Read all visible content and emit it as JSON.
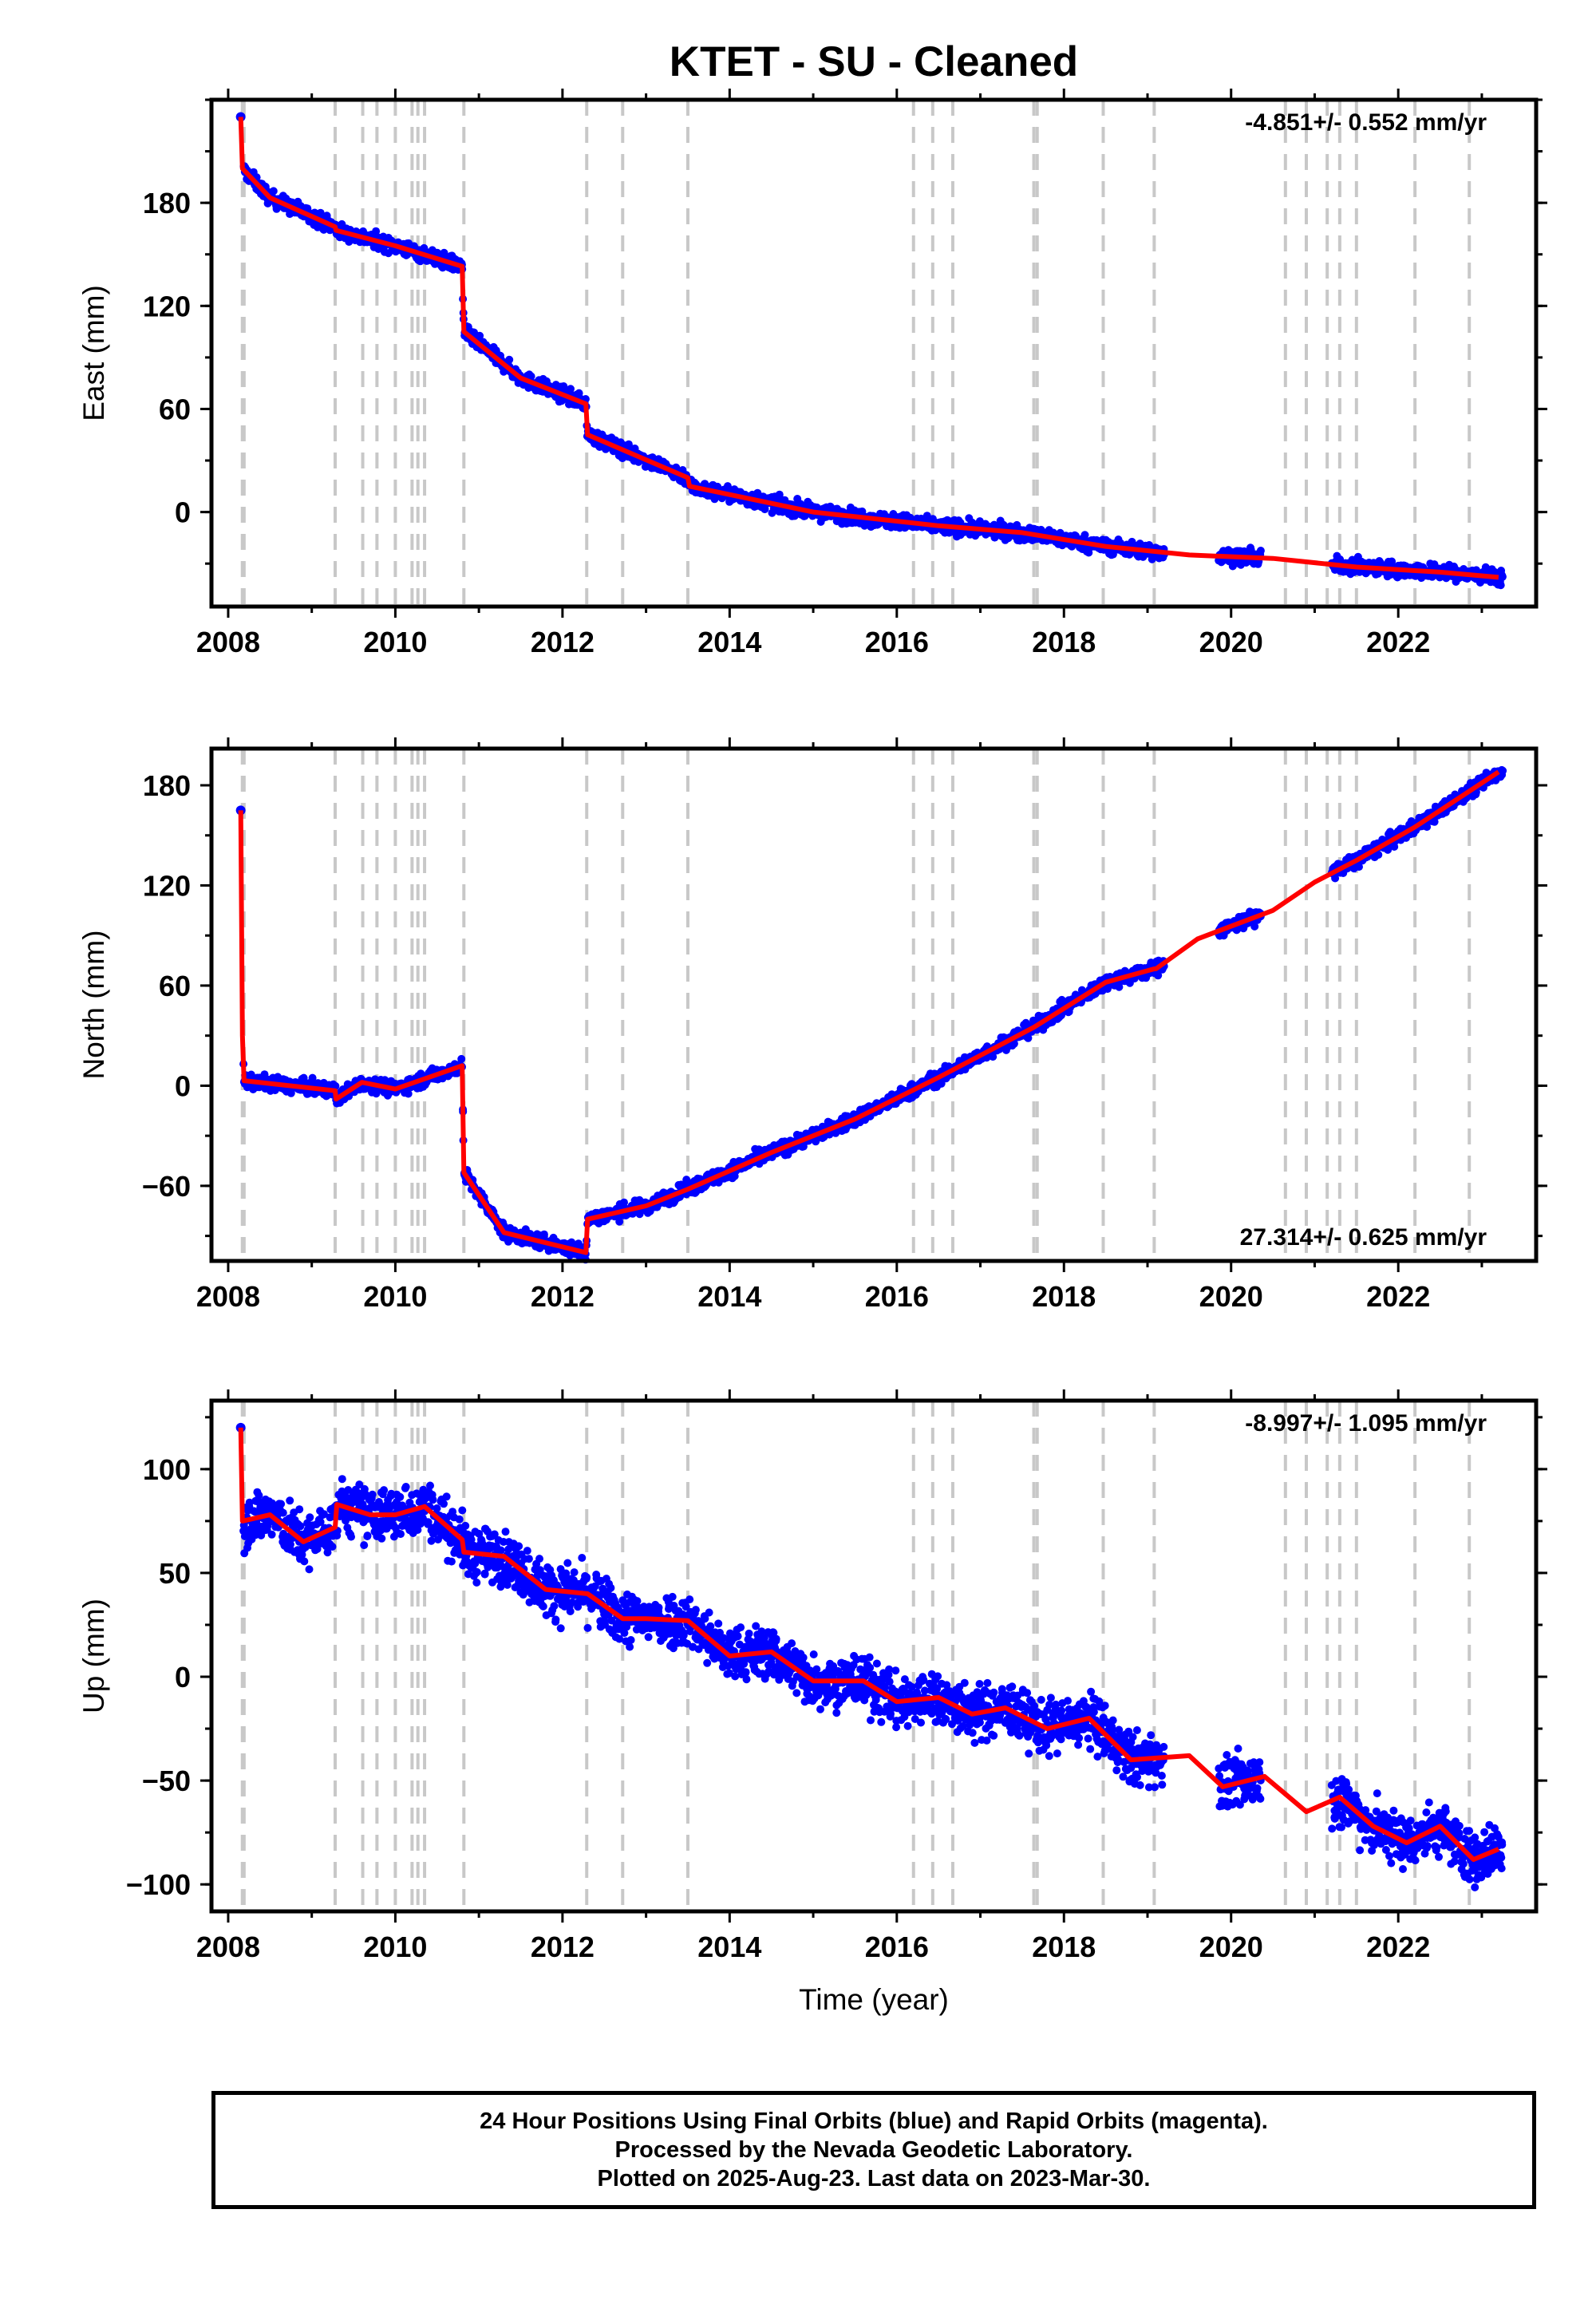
{
  "title": "KTET  - SU - Cleaned",
  "xlabel": "Time (year)",
  "footer": {
    "line1": "24 Hour Positions Using Final Orbits (blue) and Rapid Orbits (magenta).",
    "line2": "Processed by the Nevada Geodetic Laboratory.",
    "line3": "Plotted on 2025-Aug-23. Last data on 2023-Mar-30."
  },
  "colors": {
    "final_orbits": "#0000ff",
    "model_fit": "#ff0000",
    "event_lines": "#c8c8c8"
  },
  "chart_data": [
    {
      "type": "scatter",
      "ylabel": "East (mm)",
      "rate": "-4.851+/- 0.552 mm/yr",
      "xlim": [
        2007.8,
        2023.65
      ],
      "ylim": [
        -55,
        240
      ],
      "xticks": [
        2008,
        2010,
        2012,
        2014,
        2016,
        2018,
        2020,
        2022
      ],
      "yticks": [
        0,
        60,
        120,
        180
      ],
      "grid": false,
      "events": [
        2008.17,
        2008.19,
        2009.28,
        2009.61,
        2009.78,
        2010.0,
        2010.2,
        2010.27,
        2010.35,
        2010.82,
        2012.29,
        2012.72,
        2013.5,
        2016.2,
        2016.43,
        2016.67,
        2017.64,
        2017.68,
        2018.47,
        2019.08,
        2020.65,
        2020.9,
        2021.15,
        2021.3,
        2021.5,
        2022.2,
        2022.85
      ],
      "series": [
        {
          "values": [
            [
              2008.15,
              230
            ],
            [
              2008.17,
              200
            ],
            [
              2008.5,
              183
            ],
            [
              2009.28,
              166
            ],
            [
              2009.29,
              164
            ],
            [
              2010.0,
              155
            ],
            [
              2010.8,
              143
            ],
            [
              2010.82,
              105
            ],
            [
              2011.5,
              78
            ],
            [
              2012.28,
              63
            ],
            [
              2012.3,
              45
            ],
            [
              2013.5,
              20
            ],
            [
              2013.52,
              15
            ],
            [
              2015.0,
              0
            ],
            [
              2016.5,
              -8
            ],
            [
              2017.5,
              -12
            ],
            [
              2018.5,
              -20
            ],
            [
              2019.5,
              -25
            ],
            [
              2020.5,
              -27
            ],
            [
              2021.5,
              -32
            ],
            [
              2022.5,
              -35
            ],
            [
              2023.2,
              -38
            ]
          ]
        }
      ]
    },
    {
      "type": "scatter",
      "ylabel": "North (mm)",
      "rate": "27.314+/- 0.625 mm/yr",
      "xlim": [
        2007.8,
        2023.65
      ],
      "ylim": [
        -105,
        202
      ],
      "xticks": [
        2008,
        2010,
        2012,
        2014,
        2016,
        2018,
        2020,
        2022
      ],
      "yticks": [
        -60,
        0,
        60,
        120,
        180
      ],
      "grid": false,
      "events": [
        2008.17,
        2008.19,
        2009.28,
        2009.61,
        2009.78,
        2010.0,
        2010.2,
        2010.27,
        2010.35,
        2010.82,
        2012.29,
        2012.72,
        2013.5,
        2016.2,
        2016.43,
        2016.67,
        2017.64,
        2017.68,
        2018.47,
        2019.08,
        2020.65,
        2020.9,
        2021.15,
        2021.3,
        2021.5,
        2022.2,
        2022.85
      ],
      "series": [
        {
          "values": [
            [
              2008.15,
              165
            ],
            [
              2008.17,
              30
            ],
            [
              2008.19,
              3
            ],
            [
              2009.28,
              -3
            ],
            [
              2009.29,
              -8
            ],
            [
              2009.6,
              2
            ],
            [
              2010.0,
              -2
            ],
            [
              2010.8,
              12
            ],
            [
              2010.82,
              -52
            ],
            [
              2011.3,
              -88
            ],
            [
              2012.28,
              -100
            ],
            [
              2012.3,
              -80
            ],
            [
              2013.0,
              -72
            ],
            [
              2013.5,
              -62
            ],
            [
              2014.5,
              -40
            ],
            [
              2015.5,
              -20
            ],
            [
              2016.5,
              5
            ],
            [
              2017.64,
              35
            ],
            [
              2018.5,
              62
            ],
            [
              2019.08,
              70
            ],
            [
              2019.1,
              70
            ],
            [
              2019.6,
              88
            ],
            [
              2020.5,
              105
            ],
            [
              2021.0,
              122
            ],
            [
              2021.5,
              135
            ],
            [
              2022.2,
              155
            ],
            [
              2023.2,
              188
            ]
          ]
        }
      ]
    },
    {
      "type": "scatter",
      "ylabel": "Up (mm)",
      "rate": "-8.997+/- 1.095 mm/yr",
      "xlim": [
        2007.8,
        2023.65
      ],
      "ylim": [
        -113,
        133
      ],
      "xticks": [
        2008,
        2010,
        2012,
        2014,
        2016,
        2018,
        2020,
        2022
      ],
      "yticks": [
        -100,
        -50,
        0,
        50,
        100
      ],
      "grid": false,
      "events": [
        2008.17,
        2008.19,
        2009.28,
        2009.61,
        2009.78,
        2010.0,
        2010.2,
        2010.27,
        2010.35,
        2010.82,
        2012.29,
        2012.72,
        2013.5,
        2016.2,
        2016.43,
        2016.67,
        2017.64,
        2017.68,
        2018.47,
        2019.08,
        2020.65,
        2020.9,
        2021.15,
        2021.3,
        2021.5,
        2022.2,
        2022.85
      ],
      "series": [
        {
          "values": [
            [
              2008.15,
              120
            ],
            [
              2008.17,
              75
            ],
            [
              2008.5,
              78
            ],
            [
              2008.9,
              65
            ],
            [
              2009.28,
              72
            ],
            [
              2009.3,
              83
            ],
            [
              2009.7,
              78
            ],
            [
              2010.0,
              78
            ],
            [
              2010.35,
              82
            ],
            [
              2010.8,
              66
            ],
            [
              2010.82,
              60
            ],
            [
              2011.3,
              58
            ],
            [
              2011.8,
              42
            ],
            [
              2012.3,
              40
            ],
            [
              2012.72,
              28
            ],
            [
              2013.0,
              28
            ],
            [
              2013.5,
              27
            ],
            [
              2014.0,
              10
            ],
            [
              2014.5,
              12
            ],
            [
              2015.0,
              -2
            ],
            [
              2015.6,
              -2
            ],
            [
              2016.0,
              -12
            ],
            [
              2016.5,
              -10
            ],
            [
              2016.9,
              -18
            ],
            [
              2017.3,
              -15
            ],
            [
              2017.8,
              -25
            ],
            [
              2018.3,
              -20
            ],
            [
              2018.8,
              -40
            ],
            [
              2019.5,
              -38
            ],
            [
              2019.9,
              -53
            ],
            [
              2020.4,
              -48
            ],
            [
              2020.9,
              -65
            ],
            [
              2021.3,
              -58
            ],
            [
              2021.7,
              -72
            ],
            [
              2022.1,
              -80
            ],
            [
              2022.5,
              -72
            ],
            [
              2022.9,
              -88
            ],
            [
              2023.2,
              -83
            ]
          ]
        }
      ]
    }
  ]
}
